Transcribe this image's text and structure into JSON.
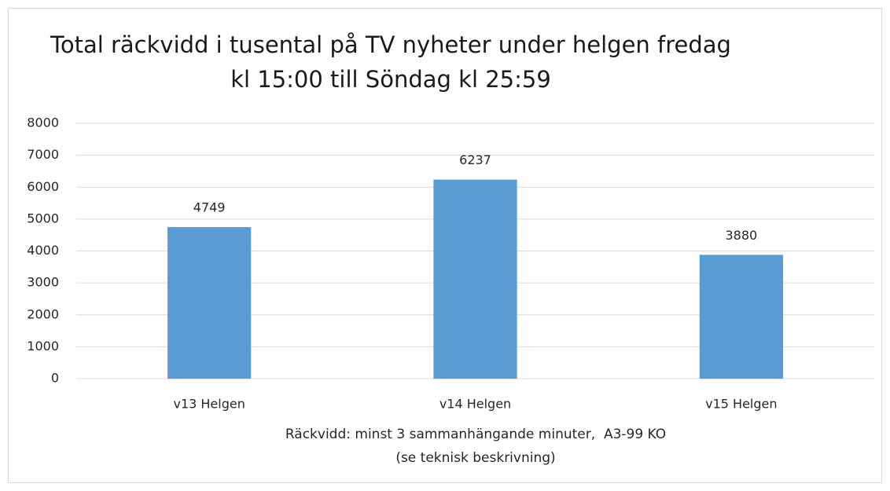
{
  "chart_data": {
    "type": "bar",
    "title": [
      "Total räckvidd i tusental på TV nyheter under helgen fredag",
      "kl 15:00 till Söndag kl 25:59"
    ],
    "xlabel": [
      "Räckvidd: minst 3 sammanhängande minuter,  A3-99 KO",
      "(se teknisk beskrivning)"
    ],
    "categories": [
      "v13 Helgen",
      "v14 Helgen",
      "v15 Helgen"
    ],
    "values": [
      4749,
      6237,
      3880
    ],
    "color": "#5b9bd5",
    "ylim": [
      0,
      8000
    ],
    "yticks": [
      0,
      1000,
      2000,
      3000,
      4000,
      5000,
      6000,
      7000,
      8000
    ],
    "grid": true
  }
}
